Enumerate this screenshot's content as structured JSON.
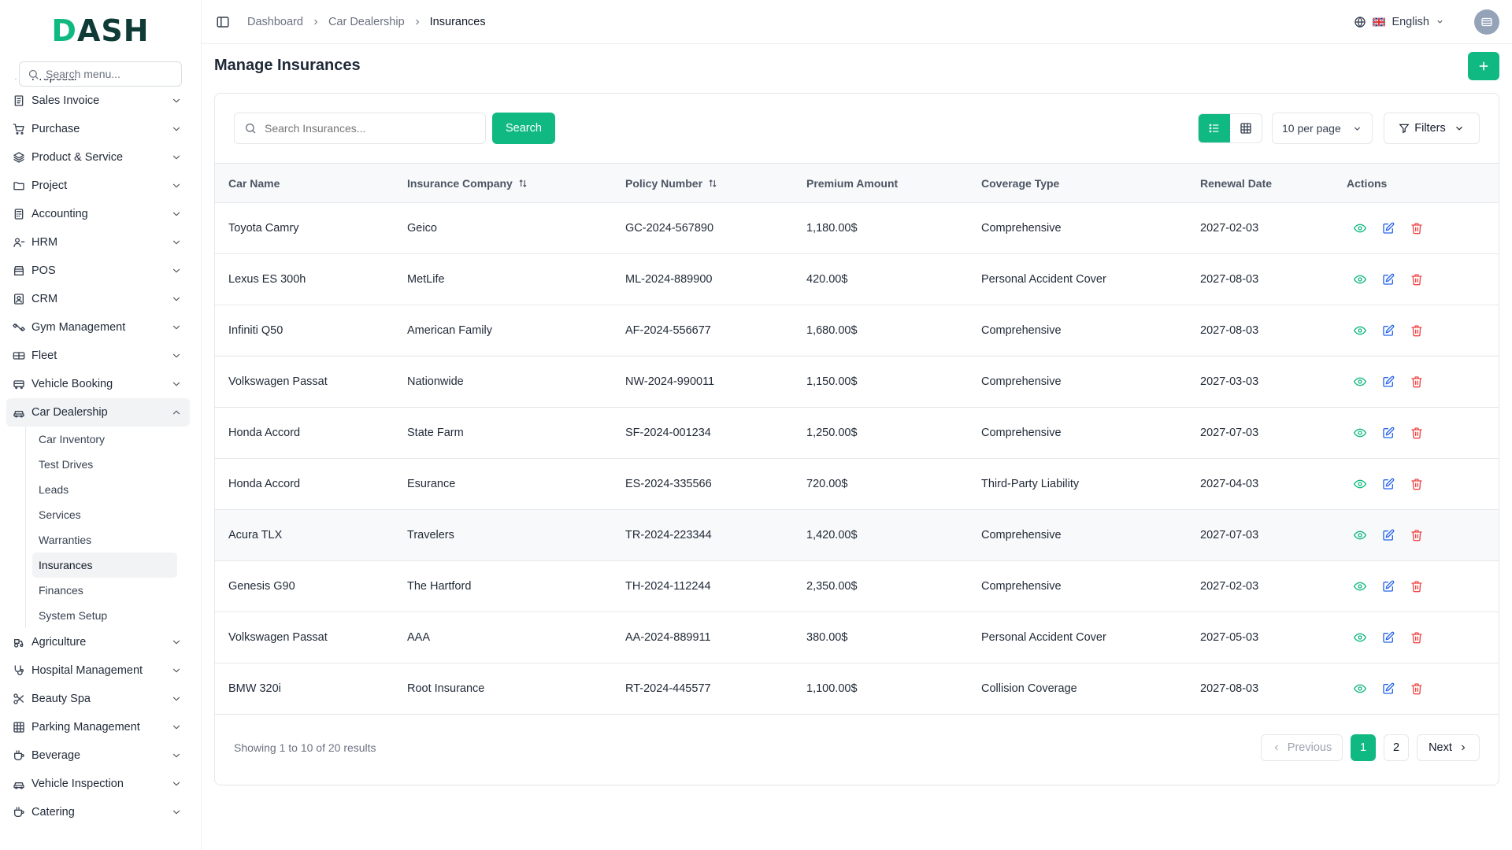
{
  "brand": {
    "logo_text": "DASH"
  },
  "sidebar": {
    "search_placeholder": "Search menu...",
    "partial_item": "Proposal",
    "items_top": [
      {
        "label": "Sales Invoice",
        "icon": "invoice-icon"
      },
      {
        "label": "Purchase",
        "icon": "cart-icon"
      },
      {
        "label": "Product & Service",
        "icon": "layers-icon"
      },
      {
        "label": "Project",
        "icon": "folder-icon"
      },
      {
        "label": "Accounting",
        "icon": "calculator-icon"
      },
      {
        "label": "HRM",
        "icon": "users-icon"
      },
      {
        "label": "POS",
        "icon": "store-icon"
      },
      {
        "label": "CRM",
        "icon": "contact-icon"
      },
      {
        "label": "Gym Management",
        "icon": "dumbbell-icon"
      },
      {
        "label": "Fleet",
        "icon": "truck-icon"
      },
      {
        "label": "Vehicle Booking",
        "icon": "bus-icon"
      }
    ],
    "active_group": {
      "label": "Car Dealership",
      "icon": "car-icon"
    },
    "submenu": [
      "Car Inventory",
      "Test Drives",
      "Leads",
      "Services",
      "Warranties",
      "Insurances",
      "Finances",
      "System Setup"
    ],
    "active_sub": "Insurances",
    "items_bottom": [
      {
        "label": "Agriculture",
        "icon": "tractor-icon"
      },
      {
        "label": "Hospital Management",
        "icon": "stethoscope-icon"
      },
      {
        "label": "Beauty Spa",
        "icon": "scissors-icon"
      },
      {
        "label": "Parking Management",
        "icon": "grid-icon"
      },
      {
        "label": "Beverage",
        "icon": "cup-icon"
      },
      {
        "label": "Vehicle Inspection",
        "icon": "car-icon"
      },
      {
        "label": "Catering",
        "icon": "cup-icon"
      }
    ]
  },
  "topbar": {
    "breadcrumbs": [
      "Dashboard",
      "Car Dealership",
      "Insurances"
    ],
    "language": "English"
  },
  "page": {
    "title": "Manage Insurances"
  },
  "toolbar": {
    "search_placeholder": "Search Insurances...",
    "search_label": "Search",
    "per_page": "10 per page",
    "filters_label": "Filters"
  },
  "table": {
    "columns": [
      "Car Name",
      "Insurance Company",
      "Policy Number",
      "Premium Amount",
      "Coverage Type",
      "Renewal Date",
      "Actions"
    ],
    "rows": [
      {
        "car": "Toyota Camry",
        "company": "Geico",
        "policy": "GC-2024-567890",
        "premium": "1,180.00$",
        "coverage": "Comprehensive",
        "renewal": "2027-02-03"
      },
      {
        "car": "Lexus ES 300h",
        "company": "MetLife",
        "policy": "ML-2024-889900",
        "premium": "420.00$",
        "coverage": "Personal Accident Cover",
        "renewal": "2027-08-03"
      },
      {
        "car": "Infiniti Q50",
        "company": "American Family",
        "policy": "AF-2024-556677",
        "premium": "1,680.00$",
        "coverage": "Comprehensive",
        "renewal": "2027-08-03"
      },
      {
        "car": "Volkswagen Passat",
        "company": "Nationwide",
        "policy": "NW-2024-990011",
        "premium": "1,150.00$",
        "coverage": "Comprehensive",
        "renewal": "2027-03-03"
      },
      {
        "car": "Honda Accord",
        "company": "State Farm",
        "policy": "SF-2024-001234",
        "premium": "1,250.00$",
        "coverage": "Comprehensive",
        "renewal": "2027-07-03"
      },
      {
        "car": "Honda Accord",
        "company": "Esurance",
        "policy": "ES-2024-335566",
        "premium": "720.00$",
        "coverage": "Third-Party Liability",
        "renewal": "2027-04-03"
      },
      {
        "car": "Acura TLX",
        "company": "Travelers",
        "policy": "TR-2024-223344",
        "premium": "1,420.00$",
        "coverage": "Comprehensive",
        "renewal": "2027-07-03"
      },
      {
        "car": "Genesis G90",
        "company": "The Hartford",
        "policy": "TH-2024-112244",
        "premium": "2,350.00$",
        "coverage": "Comprehensive",
        "renewal": "2027-02-03"
      },
      {
        "car": "Volkswagen Passat",
        "company": "AAA",
        "policy": "AA-2024-889911",
        "premium": "380.00$",
        "coverage": "Personal Accident Cover",
        "renewal": "2027-05-03"
      },
      {
        "car": "BMW 320i",
        "company": "Root Insurance",
        "policy": "RT-2024-445577",
        "premium": "1,100.00$",
        "coverage": "Collision Coverage",
        "renewal": "2027-08-03"
      }
    ]
  },
  "pagination": {
    "showing": "Showing 1 to 10 of 20 results",
    "previous": "Previous",
    "pages": [
      "1",
      "2"
    ],
    "current": "1",
    "next": "Next"
  },
  "colors": {
    "accent": "#10b981",
    "edit": "#2563eb",
    "delete": "#ef4444"
  }
}
